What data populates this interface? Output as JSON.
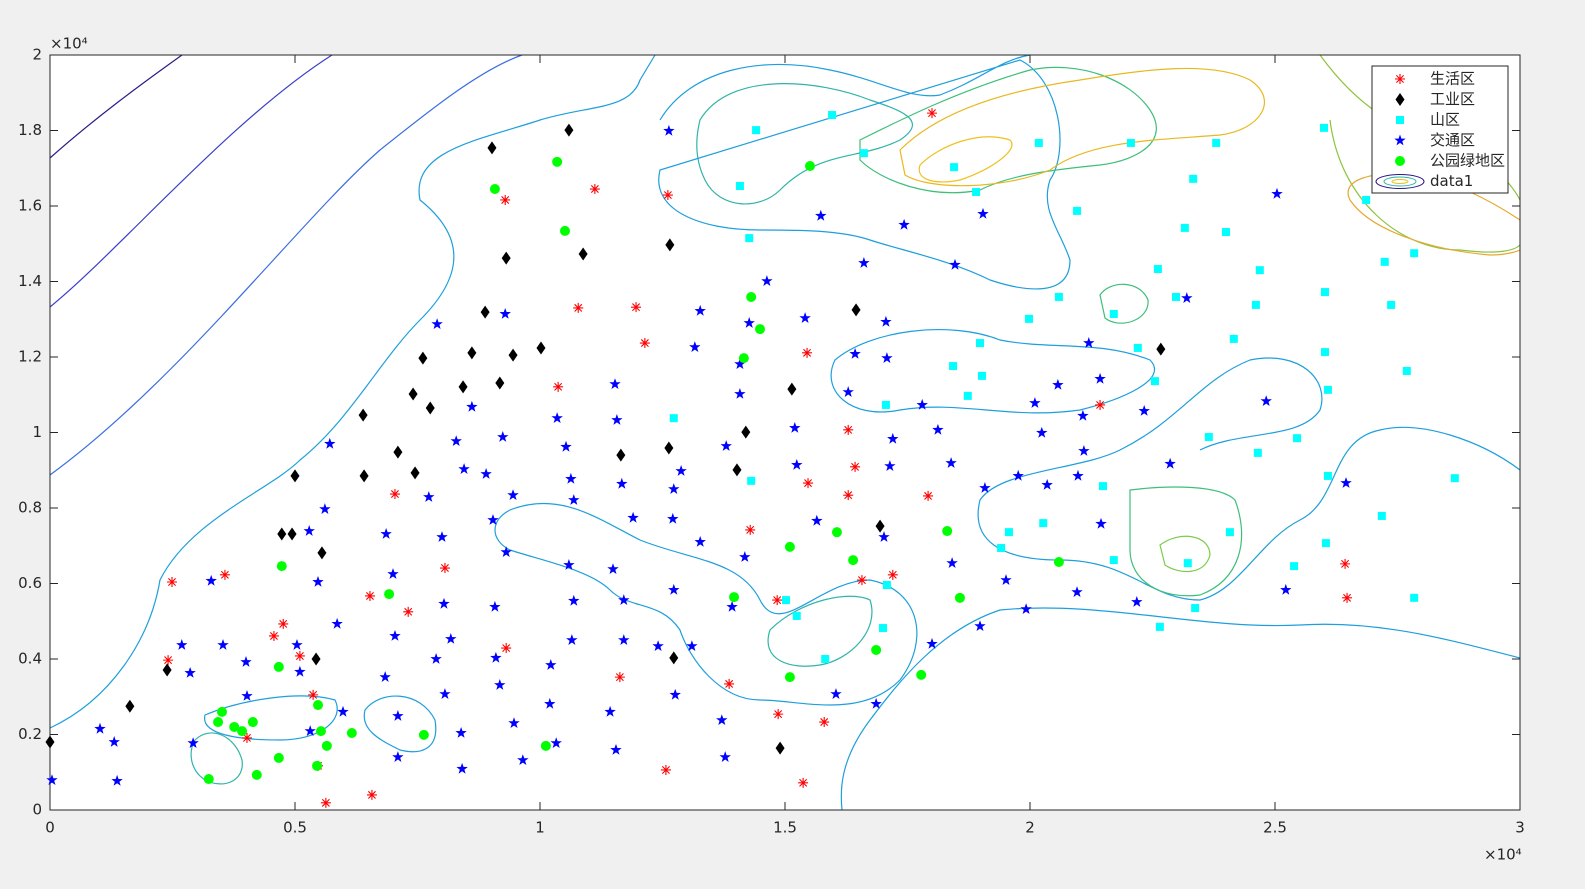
{
  "chart_data": {
    "type": "scatter",
    "xlim": [
      0,
      30000
    ],
    "ylim": [
      0,
      20000
    ],
    "xticks": [
      0,
      {
        "value": 5000,
        "label": "0.5"
      },
      {
        "value": 10000,
        "label": "1"
      },
      {
        "value": 15000,
        "label": "1.5"
      },
      {
        "value": 20000,
        "label": "2"
      },
      {
        "value": 25000,
        "label": "2.5"
      },
      {
        "value": 30000,
        "label": "3"
      }
    ],
    "yticks": [
      0,
      {
        "value": 2000,
        "label": "0.2"
      },
      {
        "value": 4000,
        "label": "0.4"
      },
      {
        "value": 6000,
        "label": "0.6"
      },
      {
        "value": 8000,
        "label": "0.8"
      },
      {
        "value": 10000,
        "label": "1"
      },
      {
        "value": 12000,
        "label": "1.2"
      },
      {
        "value": 14000,
        "label": "1.4"
      },
      {
        "value": 16000,
        "label": "1.6"
      },
      {
        "value": 18000,
        "label": "1.8"
      },
      {
        "value": 20000,
        "label": "2"
      }
    ],
    "xscale_label": "×10⁴",
    "yscale_label": "×10⁴",
    "grid": false,
    "legend": "northeast",
    "series": [
      {
        "name": "生活区",
        "color": "#ff0000",
        "marker": "asterisk",
        "x": [
          2490,
          3570,
          2410,
          4570,
          4760,
          5100,
          5370,
          5470,
          5630,
          4020,
          6570,
          6530,
          7040,
          7310,
          8060,
          9310,
          9290,
          10370,
          10780,
          11120,
          11960,
          12140,
          12610,
          11630,
          12570,
          13860,
          14290,
          14840,
          14860,
          15370,
          15450,
          15470,
          16290,
          16290,
          16430,
          16570,
          15800,
          17200,
          17920,
          18000,
          21430,
          26430,
          26470
        ],
        "y": [
          6040,
          6230,
          3970,
          4610,
          4930,
          4080,
          3050,
          1170,
          190,
          1910,
          400,
          5670,
          8370,
          5250,
          6410,
          4290,
          16160,
          11210,
          13300,
          16450,
          13320,
          12370,
          16290,
          3520,
          1060,
          3340,
          7420,
          5560,
          2540,
          720,
          12110,
          8660,
          10070,
          8340,
          9090,
          6090,
          2330,
          6230,
          8320,
          18460,
          10730,
          6520,
          5620
        ]
      },
      {
        "name": "工业区",
        "color": "#000000",
        "marker": "diamond",
        "x": [
          0,
          1630,
          2390,
          4730,
          4940,
          5000,
          5430,
          5550,
          6390,
          6410,
          7100,
          7410,
          7450,
          7610,
          7760,
          8430,
          8610,
          8880,
          9020,
          9180,
          9310,
          9450,
          10020,
          10590,
          10880,
          11650,
          12630,
          12650,
          12730,
          14020,
          14200,
          14900,
          15140,
          16450,
          16940,
          22670
        ],
        "y": [
          1800,
          2750,
          3710,
          7310,
          7310,
          8850,
          4000,
          6810,
          10460,
          8850,
          9480,
          11020,
          8930,
          11970,
          10650,
          11210,
          12110,
          13190,
          17540,
          11310,
          14620,
          12050,
          12240,
          18010,
          14730,
          9400,
          9590,
          14970,
          4030,
          9010,
          10010,
          1640,
          11150,
          13250,
          7520,
          12210
        ]
      },
      {
        "name": "山区",
        "color": "#00ffff",
        "marker": "square",
        "x": [
          14410,
          15960,
          14080,
          16610,
          18450,
          18900,
          20180,
          22060,
          23800,
          23330,
          26000,
          26860,
          14270,
          20960,
          23160,
          24000,
          24690,
          22610,
          22980,
          20590,
          19980,
          21710,
          22200,
          22550,
          24160,
          24610,
          26020,
          27240,
          27840,
          27370,
          26020,
          26080,
          27690,
          18980,
          18430,
          19020,
          18730,
          17060,
          12730,
          14310,
          21490,
          19570,
          20270,
          19410,
          21710,
          24080,
          24650,
          25450,
          23650,
          26080,
          27180,
          26040,
          28670,
          25390,
          27840,
          23220,
          23370,
          22650,
          17080,
          17000,
          15820,
          15240,
          15020
        ],
        "y": [
          18010,
          18410,
          16530,
          17400,
          17030,
          16370,
          17670,
          17670,
          17670,
          16720,
          18070,
          16160,
          15150,
          15870,
          15420,
          15310,
          14300,
          14330,
          13590,
          13590,
          13010,
          13140,
          12240,
          11360,
          12480,
          13380,
          13720,
          14520,
          14750,
          13380,
          12130,
          11130,
          11630,
          12370,
          11760,
          11500,
          10970,
          10730,
          10380,
          8720,
          8580,
          7360,
          7600,
          6940,
          6620,
          7360,
          9460,
          9850,
          9880,
          8850,
          7790,
          7070,
          8790,
          6460,
          5620,
          6540,
          5350,
          4850,
          5960,
          4820,
          4000,
          5140,
          5560
        ]
      },
      {
        "name": "交通区",
        "color": "#0000ff",
        "marker": "star",
        "x": [
          40,
          1020,
          1310,
          1370,
          2690,
          2920,
          2860,
          3290,
          3530,
          4000,
          4020,
          5040,
          5100,
          5290,
          5310,
          5470,
          5610,
          5710,
          5860,
          5980,
          6840,
          6860,
          7000,
          7040,
          7100,
          7100,
          7730,
          7880,
          8000,
          8040,
          8060,
          8180,
          7900,
          8290,
          8390,
          8410,
          8450,
          8610,
          8900,
          9040,
          9080,
          9100,
          9180,
          9240,
          9290,
          9310,
          9450,
          9470,
          9650,
          10220,
          10200,
          10330,
          10350,
          10530,
          10590,
          10630,
          10650,
          10690,
          10690,
          11530,
          11570,
          11490,
          11550,
          11670,
          11710,
          11710,
          11430,
          11900,
          12410,
          12630,
          12730,
          12710,
          12730,
          12760,
          12880,
          13100,
          13270,
          13160,
          13270,
          13710,
          13780,
          13800,
          13920,
          14080,
          14080,
          14180,
          14270,
          14630,
          15240,
          15200,
          15410,
          15650,
          15730,
          16040,
          16290,
          16430,
          16610,
          16860,
          17020,
          17060,
          17080,
          17140,
          17200,
          17430,
          17800,
          18000,
          18120,
          18390,
          18410,
          18470,
          18980,
          19040,
          19080,
          19510,
          19760,
          19920,
          20100,
          20240,
          20350,
          20570,
          20960,
          20980,
          21080,
          21100,
          21200,
          21430,
          21450,
          22180,
          22330,
          22860,
          23200,
          24820,
          25040,
          25220,
          26450
        ],
        "y": [
          790,
          2150,
          1800,
          770,
          4370,
          1770,
          3630,
          6070,
          4370,
          3920,
          3020,
          4370,
          3660,
          7390,
          2090,
          6040,
          7970,
          9700,
          4930,
          2600,
          3520,
          7310,
          6250,
          4610,
          1400,
          2490,
          8290,
          4000,
          7230,
          5460,
          3070,
          4530,
          12870,
          9770,
          2040,
          1090,
          9030,
          10680,
          8900,
          7680,
          5380,
          4030,
          3310,
          9880,
          13140,
          6830,
          8340,
          2300,
          1320,
          3840,
          2810,
          1770,
          10380,
          9620,
          6490,
          8770,
          4500,
          5540,
          8210,
          11280,
          10330,
          6380,
          1590,
          8640,
          5560,
          4500,
          2600,
          7740,
          4340,
          17990,
          8500,
          7710,
          5830,
          3050,
          8980,
          4340,
          13220,
          12260,
          7100,
          2380,
          1400,
          9640,
          5380,
          11020,
          11810,
          6700,
          12900,
          14010,
          9140,
          10120,
          13030,
          7660,
          15740,
          3070,
          11070,
          12080,
          14490,
          2810,
          7230,
          12930,
          11970,
          9110,
          9830,
          15500,
          10730,
          4400,
          10070,
          9190,
          6540,
          14440,
          4870,
          15790,
          8530,
          6090,
          8850,
          5320,
          10780,
          9990,
          8610,
          11260,
          5770,
          8850,
          10440,
          9510,
          12370,
          11420,
          7580,
          5510,
          10570,
          9170,
          13560,
          10830,
          16320,
          5830,
          8660
        ]
      },
      {
        "name": "公园绿地区",
        "color": "#00ff00",
        "marker": "circle",
        "x": [
          3240,
          3430,
          3510,
          3760,
          3920,
          4140,
          4220,
          4670,
          4670,
          4730,
          5450,
          5470,
          5530,
          5650,
          6160,
          6920,
          7630,
          9080,
          10120,
          10350,
          10510,
          14160,
          14310,
          14490,
          13960,
          15100,
          15100,
          15510,
          16060,
          16390,
          16860,
          17780,
          18310,
          18570,
          20590
        ],
        "y": [
          820,
          2330,
          2600,
          2200,
          2090,
          2330,
          930,
          1380,
          3790,
          6460,
          1170,
          2780,
          2090,
          1700,
          2040,
          5720,
          1990,
          16450,
          1700,
          17170,
          15340,
          11970,
          13590,
          12740,
          5640,
          6970,
          3520,
          17060,
          7360,
          6620,
          4240,
          3580,
          7390,
          5620,
          6570
        ]
      }
    ],
    "contour": {
      "name": "data1"
    }
  }
}
